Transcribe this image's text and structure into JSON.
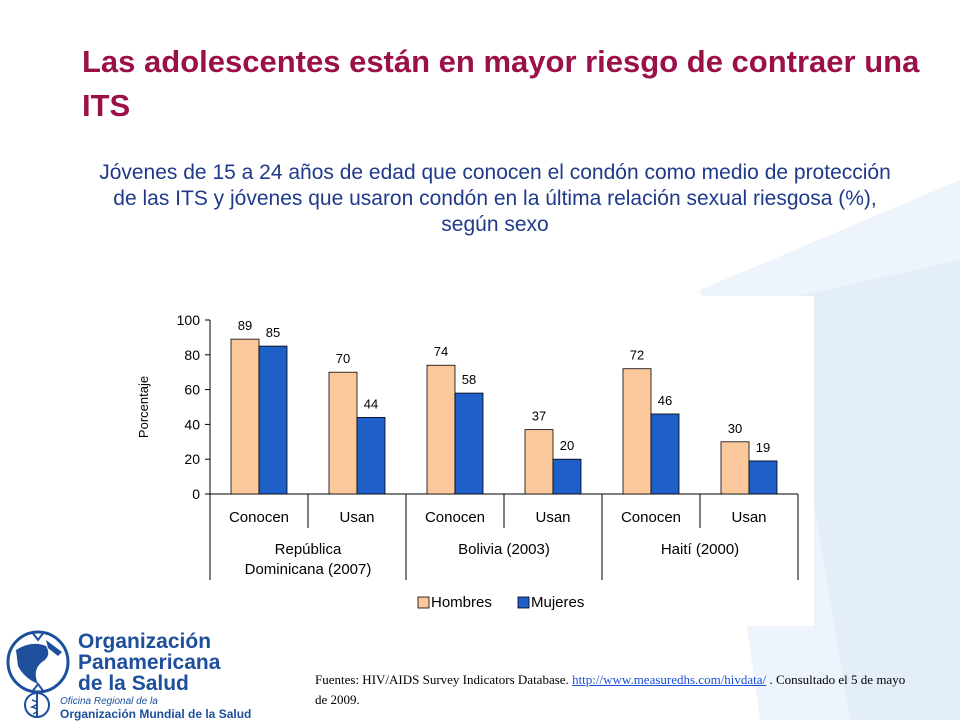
{
  "title": "Las adolescentes están en mayor riesgo de contraer una ITS",
  "subtitle": "Jóvenes  de 15 a 24 años de edad que conocen el condón como medio de protección de las ITS y jóvenes que usaron condón en la última relación sexual riesgosa (%), según sexo",
  "chart_data": {
    "type": "bar",
    "categories": [
      "Conocen",
      "Usan",
      "Conocen",
      "Usan",
      "Conocen",
      "Usan"
    ],
    "groups": [
      {
        "label_line1": "República",
        "label_line2": "Dominicana (2007)"
      },
      {
        "label_line1": "Bolivia (2003)",
        "label_line2": ""
      },
      {
        "label_line1": "Haití (2000)",
        "label_line2": ""
      }
    ],
    "series": [
      {
        "name": "Hombres",
        "values": [
          89,
          70,
          74,
          37,
          72,
          30
        ],
        "color": "#fbc89b"
      },
      {
        "name": "Mujeres",
        "values": [
          85,
          44,
          58,
          20,
          46,
          19
        ],
        "color": "#1f5fc8"
      }
    ],
    "ylabel": "Porcentaje",
    "ylim": [
      0,
      100
    ],
    "yticks": [
      0,
      20,
      40,
      60,
      80,
      100
    ],
    "grid": false,
    "legend_position": "bottom"
  },
  "source": {
    "prefix": "Fuentes: HIV/AIDS Survey Indicators Database. ",
    "link_text": "http://www.measuredhs.com/hivdata/",
    "suffix": " . Consultado el 5 de mayo de 2009."
  },
  "logo": {
    "line1": "Organización",
    "line2": "Panamericana",
    "line3": "de la Salud",
    "small": "Oficina Regional de la",
    "big": "Organización Mundial de la Salud"
  },
  "colors": {
    "title": "#9b1049",
    "subtitle": "#1f3a8a",
    "brand_blue": "#1d4f9c"
  }
}
